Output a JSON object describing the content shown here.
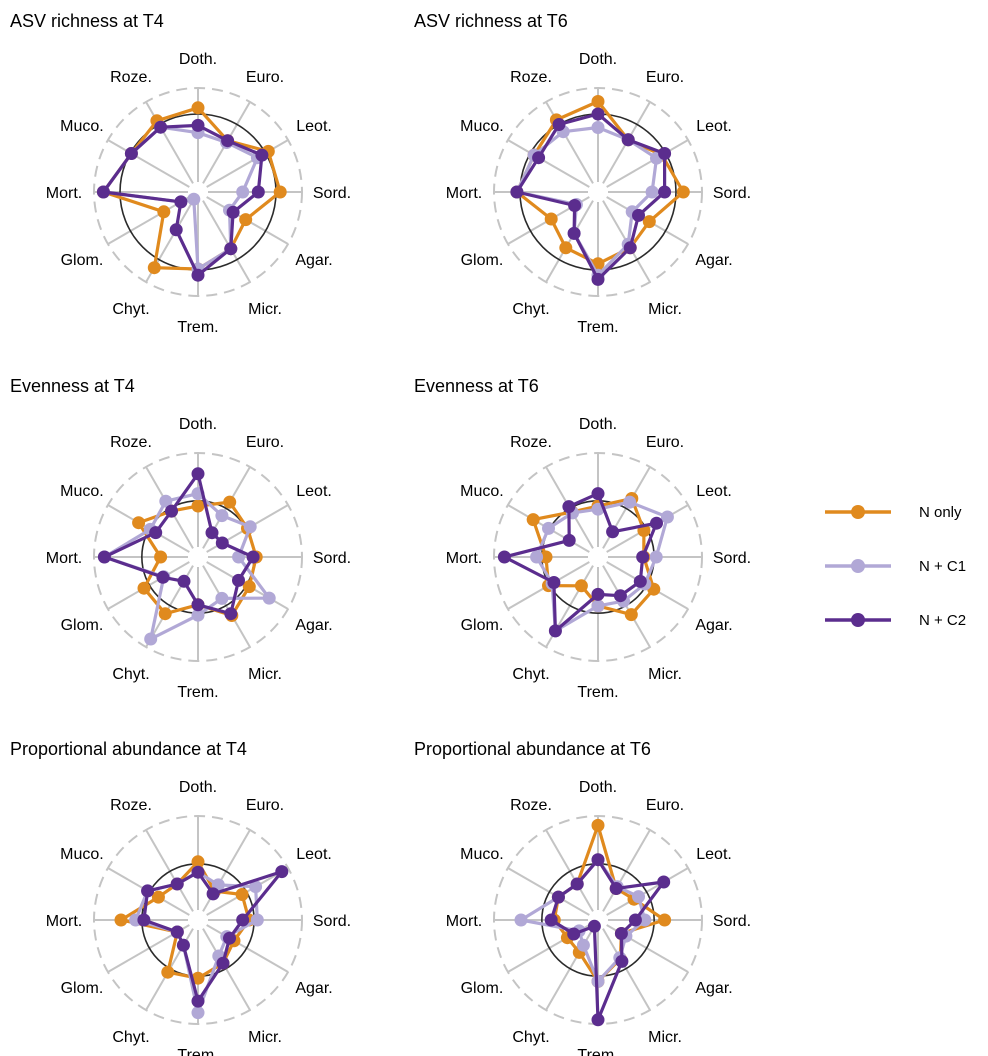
{
  "colors": {
    "grid_spoke": "#c4c4c4",
    "outer_ring": "#c4c4c4",
    "reference_ring": "#2b2b2b",
    "n_only": "#e08a1e",
    "n_c1": "#b1a8d6",
    "n_c2": "#5b2d8e"
  },
  "legend": {
    "n_only": "N only",
    "n_c1": "N + C1",
    "n_c2": "N + C2"
  },
  "chart_data": [
    {
      "type": "radar",
      "title": "ASV richness at T4",
      "axes": [
        "Doth.",
        "Euro.",
        "Leot.",
        "Sord.",
        "Agar.",
        "Micr.",
        "Trem.",
        "Chyt.",
        "Glom.",
        "Mort.",
        "Muco.",
        "Roze."
      ],
      "reference_ring": 0.75,
      "series": [
        {
          "name": "N only",
          "values": [
            0.81,
            0.57,
            0.78,
            0.79,
            0.53,
            0.63,
            0.74,
            0.84,
            0.38,
            0.91,
            0.74,
            0.79
          ]
        },
        {
          "name": "N + C1",
          "values": [
            0.57,
            0.55,
            0.66,
            0.43,
            0.35,
            0.63,
            0.74,
            0.08,
            0.19,
            0.91,
            0.74,
            0.72
          ]
        },
        {
          "name": "N + C2",
          "values": [
            0.64,
            0.57,
            0.71,
            0.58,
            0.39,
            0.63,
            0.8,
            0.42,
            0.19,
            0.91,
            0.74,
            0.72
          ]
        }
      ]
    },
    {
      "type": "radar",
      "title": "ASV richness at T6",
      "axes": [
        "Doth.",
        "Euro.",
        "Leot.",
        "Sord.",
        "Agar.",
        "Micr.",
        "Trem.",
        "Chyt.",
        "Glom.",
        "Mort.",
        "Muco.",
        "Roze."
      ],
      "reference_ring": 0.75,
      "series": [
        {
          "name": "N only",
          "values": [
            0.87,
            0.58,
            0.71,
            0.82,
            0.57,
            0.62,
            0.69,
            0.62,
            0.52,
            0.78,
            0.71,
            0.8
          ]
        },
        {
          "name": "N + C1",
          "values": [
            0.62,
            0.58,
            0.65,
            0.52,
            0.38,
            0.58,
            0.8,
            0.46,
            0.24,
            0.78,
            0.71,
            0.67
          ]
        },
        {
          "name": "N + C2",
          "values": [
            0.75,
            0.58,
            0.74,
            0.64,
            0.45,
            0.62,
            0.84,
            0.46,
            0.26,
            0.78,
            0.66,
            0.75
          ]
        }
      ]
    },
    {
      "type": "radar",
      "title": "Evenness at T4",
      "axes": [
        "Doth.",
        "Euro.",
        "Leot.",
        "Sord.",
        "Agar.",
        "Micr.",
        "Trem.",
        "Chyt.",
        "Glom.",
        "Mort.",
        "Muco.",
        "Roze."
      ],
      "reference_ring": 0.54,
      "series": [
        {
          "name": "N only",
          "values": [
            0.49,
            0.61,
            0.55,
            0.56,
            0.57,
            0.65,
            0.46,
            0.63,
            0.6,
            0.36,
            0.66,
            0.51
          ]
        },
        {
          "name": "N + C1",
          "values": [
            0.61,
            0.46,
            0.58,
            0.39,
            0.79,
            0.46,
            0.56,
            0.91,
            0.38,
            0.9,
            0.53,
            0.62
          ]
        },
        {
          "name": "N + C2",
          "values": [
            0.8,
            0.27,
            0.27,
            0.53,
            0.45,
            0.63,
            0.46,
            0.27,
            0.39,
            0.9,
            0.47,
            0.51
          ]
        }
      ]
    },
    {
      "type": "radar",
      "title": "Evenness at T6",
      "axes": [
        "Doth.",
        "Euro.",
        "Leot.",
        "Sord.",
        "Agar.",
        "Micr.",
        "Trem.",
        "Chyt.",
        "Glom.",
        "Mort.",
        "Muco.",
        "Roze."
      ],
      "reference_ring": 0.54,
      "series": [
        {
          "name": "N only",
          "values": [
            0.49,
            0.65,
            0.51,
            0.44,
            0.62,
            0.64,
            0.47,
            0.32,
            0.55,
            0.5,
            0.72,
            0.5
          ]
        },
        {
          "name": "N + C1",
          "values": [
            0.46,
            0.61,
            0.77,
            0.56,
            0.52,
            0.49,
            0.47,
            0.82,
            0.51,
            0.59,
            0.55,
            0.49
          ]
        },
        {
          "name": "N + C2",
          "values": [
            0.61,
            0.28,
            0.65,
            0.43,
            0.47,
            0.43,
            0.36,
            0.82,
            0.49,
            0.9,
            0.32,
            0.56
          ]
        }
      ]
    },
    {
      "type": "radar",
      "title": "Proportional abundance at T4",
      "axes": [
        "Doth.",
        "Euro.",
        "Leot.",
        "Sord.",
        "Agar.",
        "Micr.",
        "Trem.",
        "Chyt.",
        "Glom.",
        "Mort.",
        "Muco.",
        "Roze."
      ],
      "reference_ring": 0.54,
      "series": [
        {
          "name": "N only",
          "values": [
            0.56,
            0.32,
            0.49,
            0.49,
            0.4,
            0.48,
            0.56,
            0.58,
            0.23,
            0.74,
            0.44,
            0.4
          ]
        },
        {
          "name": "N + C1",
          "values": [
            0.46,
            0.39,
            0.64,
            0.57,
            0.32,
            0.4,
            0.89,
            0.28,
            0.23,
            0.6,
            0.56,
            0.4
          ]
        },
        {
          "name": "N + C2",
          "values": [
            0.46,
            0.29,
            0.93,
            0.43,
            0.35,
            0.48,
            0.78,
            0.28,
            0.23,
            0.52,
            0.56,
            0.4
          ]
        }
      ]
    },
    {
      "type": "radar",
      "title": "Proportional abundance at T6",
      "axes": [
        "Doth.",
        "Euro.",
        "Leot.",
        "Sord.",
        "Agar.",
        "Micr.",
        "Trem.",
        "Chyt.",
        "Glom.",
        "Mort.",
        "Muco.",
        "Roze."
      ],
      "reference_ring": 0.54,
      "series": [
        {
          "name": "N only",
          "values": [
            0.91,
            0.35,
            0.4,
            0.64,
            0.26,
            0.43,
            0.59,
            0.36,
            0.34,
            0.42,
            0.44,
            0.4
          ]
        },
        {
          "name": "N + C1",
          "values": [
            0.58,
            0.37,
            0.45,
            0.45,
            0.31,
            0.42,
            0.59,
            0.28,
            0.21,
            0.74,
            0.44,
            0.4
          ]
        },
        {
          "name": "N + C2",
          "values": [
            0.58,
            0.35,
            0.73,
            0.36,
            0.26,
            0.46,
            0.96,
            0.07,
            0.27,
            0.45,
            0.44,
            0.4
          ]
        }
      ]
    }
  ]
}
